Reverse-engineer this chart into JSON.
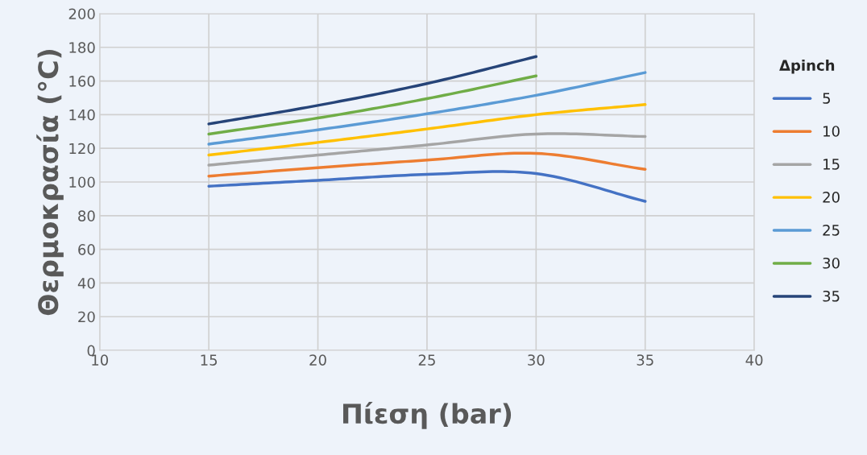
{
  "chart_data": {
    "type": "line",
    "xlabel": "Πίεση (bar)",
    "ylabel": "Θερμοκρασία (°C)",
    "legend_title": "Δpinch",
    "legend": "right",
    "x": [
      15,
      20,
      25,
      30,
      35
    ],
    "series": [
      {
        "name": "5",
        "color": "#4472c4",
        "values": [
          97.5,
          101,
          104.5,
          105,
          88.5
        ]
      },
      {
        "name": "10",
        "color": "#ed7d31",
        "values": [
          103.5,
          108.5,
          113,
          117,
          107.5
        ]
      },
      {
        "name": "15",
        "color": "#a5a5a5",
        "values": [
          110,
          116,
          122,
          128.5,
          127
        ]
      },
      {
        "name": "20",
        "color": "#ffc000",
        "values": [
          116,
          123.5,
          131.5,
          140,
          146
        ]
      },
      {
        "name": "25",
        "color": "#5b9bd5",
        "values": [
          122.5,
          131,
          140.5,
          151.5,
          165
        ]
      },
      {
        "name": "30",
        "color": "#70ad47",
        "values": [
          128.5,
          138,
          149.5,
          163,
          null
        ]
      },
      {
        "name": "35",
        "color": "#264478",
        "values": [
          134.5,
          145.5,
          158.5,
          174.5,
          null
        ]
      }
    ],
    "xlim": [
      10,
      40
    ],
    "xticks": [
      10,
      15,
      20,
      25,
      30,
      35,
      40
    ],
    "ylim": [
      0,
      200
    ],
    "yticks": [
      0,
      20,
      40,
      60,
      80,
      100,
      120,
      140,
      160,
      180,
      200
    ],
    "grid": true,
    "line_style": "solid",
    "marker": "none"
  }
}
